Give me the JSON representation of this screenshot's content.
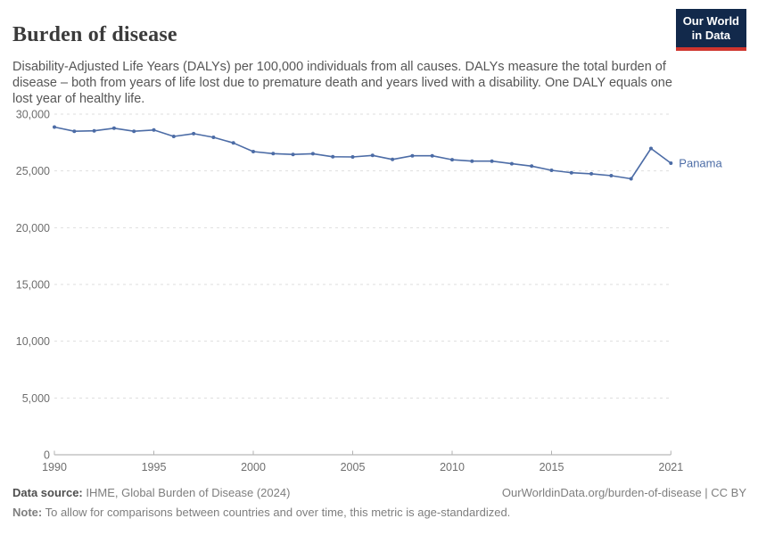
{
  "header": {
    "title": "Burden of disease",
    "subtitle": "Disability-Adjusted Life Years (DALYs) per 100,000 individuals from all causes. DALYs measure the total burden of disease – both from years of life lost due to premature death and years lived with a disability. One DALY equals one lost year of healthy life.",
    "logo": {
      "line1": "Our World",
      "line2": "in Data",
      "bg_color": "#12294b",
      "stripe_color": "#cf352e"
    }
  },
  "chart_data": {
    "type": "line",
    "title": "Burden of disease",
    "xlabel": "",
    "ylabel": "",
    "xlim": [
      1990,
      2021
    ],
    "ylim": [
      0,
      30000
    ],
    "x_ticks": [
      1990,
      1995,
      2000,
      2005,
      2010,
      2015,
      2021
    ],
    "y_ticks": [
      0,
      5000,
      10000,
      15000,
      20000,
      25000,
      30000
    ],
    "grid": "horizontal-dashed",
    "legend": "end-of-line-label",
    "x": [
      1990,
      1991,
      1992,
      1993,
      1994,
      1995,
      1996,
      1997,
      1998,
      1999,
      2000,
      2001,
      2002,
      2003,
      2004,
      2005,
      2006,
      2007,
      2008,
      2009,
      2010,
      2011,
      2012,
      2013,
      2014,
      2015,
      2016,
      2017,
      2018,
      2019,
      2020,
      2021
    ],
    "series": [
      {
        "name": "Panama",
        "color": "#4c6ca6",
        "values": [
          28860,
          28490,
          28530,
          28760,
          28490,
          28600,
          28040,
          28280,
          27960,
          27460,
          26700,
          26520,
          26450,
          26510,
          26250,
          26230,
          26360,
          26010,
          26330,
          26330,
          25990,
          25860,
          25860,
          25630,
          25420,
          25050,
          24840,
          24750,
          24580,
          24310,
          26980,
          25680
        ]
      }
    ]
  },
  "footer": {
    "source_label": "Data source:",
    "source_text": " IHME, Global Burden of Disease (2024)",
    "link_text": "OurWorldinData.org/burden-of-disease | CC BY",
    "note_label": "Note:",
    "note_text": " To allow for comparisons between countries and over time, this metric is age-standardized."
  },
  "colors": {
    "line": "#4c6ca6",
    "grid": "#dedede",
    "axis": "#a6a6a6",
    "tick": "#b3b3b3",
    "tick_label": "#6e6e6e",
    "title": "#3b3b3b",
    "subtitle": "#565656",
    "footer": "#7e7e7e"
  }
}
